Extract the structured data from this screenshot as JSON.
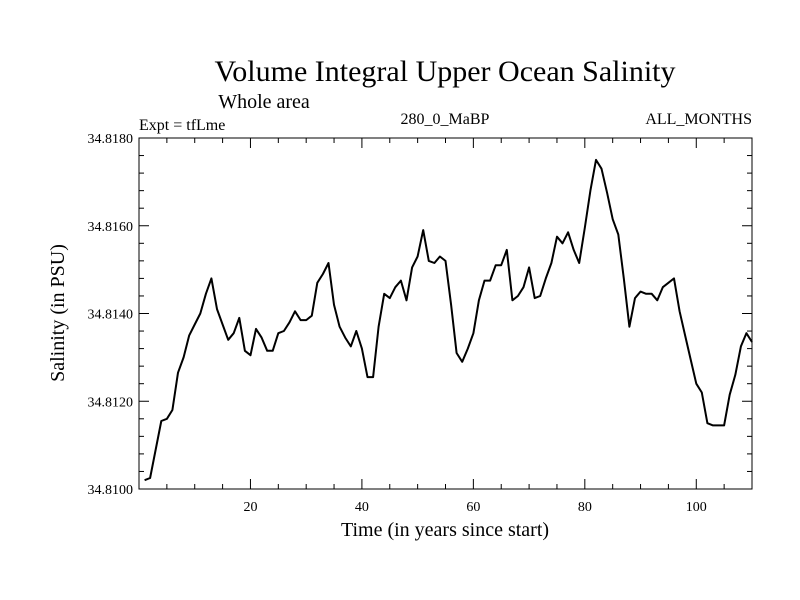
{
  "chart_data": {
    "type": "line",
    "title": "Volume Integral Upper Ocean Salinity",
    "subtitle": "Whole area",
    "left_label": "Expt = tfLme",
    "center_label": "280_0_MaBP",
    "right_label": "ALL_MONTHS",
    "xlabel": "Time (in years since start)",
    "ylabel": "Salinity (in PSU)",
    "xlim": [
      0,
      110
    ],
    "ylim": [
      34.81,
      34.818
    ],
    "xticks": [
      20,
      40,
      60,
      80,
      100
    ],
    "xtick_labels": [
      "20",
      "40",
      "60",
      "80",
      "100"
    ],
    "yticks": [
      34.81,
      34.812,
      34.814,
      34.816,
      34.818
    ],
    "ytick_labels": [
      "34.8100",
      "34.8120",
      "34.8140",
      "34.8160",
      "34.8180"
    ],
    "grid": false,
    "line_color": "#000000",
    "series": [
      {
        "name": "salinity",
        "x": [
          1,
          2,
          3,
          4,
          5,
          6,
          7,
          8,
          9,
          10,
          11,
          12,
          13,
          14,
          15,
          16,
          17,
          18,
          19,
          20,
          21,
          22,
          23,
          24,
          25,
          26,
          27,
          28,
          29,
          30,
          31,
          32,
          33,
          34,
          35,
          36,
          37,
          38,
          39,
          40,
          41,
          42,
          43,
          44,
          45,
          46,
          47,
          48,
          49,
          50,
          51,
          52,
          53,
          54,
          55,
          56,
          57,
          58,
          59,
          60,
          61,
          62,
          63,
          64,
          65,
          66,
          67,
          68,
          69,
          70,
          71,
          72,
          73,
          74,
          75,
          76,
          77,
          78,
          79,
          80,
          81,
          82,
          83,
          84,
          85,
          86,
          87,
          88,
          89,
          90,
          91,
          92,
          93,
          94,
          95,
          96,
          97,
          98,
          99,
          100,
          101,
          102,
          103,
          104,
          105,
          106,
          107,
          108,
          109,
          110
        ],
        "y": [
          34.8102,
          34.81025,
          34.8109,
          34.81155,
          34.8116,
          34.8118,
          34.81265,
          34.813,
          34.8135,
          34.81375,
          34.814,
          34.81445,
          34.8148,
          34.8141,
          34.81375,
          34.8134,
          34.81355,
          34.8139,
          34.81315,
          34.81305,
          34.81365,
          34.81345,
          34.81315,
          34.81315,
          34.81355,
          34.8136,
          34.8138,
          34.81405,
          34.81385,
          34.81385,
          34.81395,
          34.8147,
          34.8149,
          34.81515,
          34.8142,
          34.8137,
          34.81345,
          34.81325,
          34.8136,
          34.8132,
          34.81255,
          34.81255,
          34.8137,
          34.81445,
          34.81435,
          34.8146,
          34.81475,
          34.8143,
          34.81505,
          34.8153,
          34.8159,
          34.8152,
          34.81515,
          34.8153,
          34.8152,
          34.8142,
          34.8131,
          34.8129,
          34.8132,
          34.81355,
          34.8143,
          34.81475,
          34.81475,
          34.8151,
          34.8151,
          34.81545,
          34.8143,
          34.8144,
          34.8146,
          34.81505,
          34.81435,
          34.8144,
          34.8148,
          34.81515,
          34.81575,
          34.8156,
          34.81585,
          34.81545,
          34.81515,
          34.81595,
          34.8168,
          34.8175,
          34.8173,
          34.81675,
          34.81615,
          34.8158,
          34.8148,
          34.8137,
          34.81435,
          34.8145,
          34.81445,
          34.81445,
          34.8143,
          34.8146,
          34.8147,
          34.8148,
          34.81405,
          34.8135,
          34.81295,
          34.8124,
          34.8122,
          34.8115,
          34.81145,
          34.81145,
          34.81145,
          34.81215,
          34.8126,
          34.81325,
          34.81355,
          34.81335
        ]
      }
    ]
  }
}
